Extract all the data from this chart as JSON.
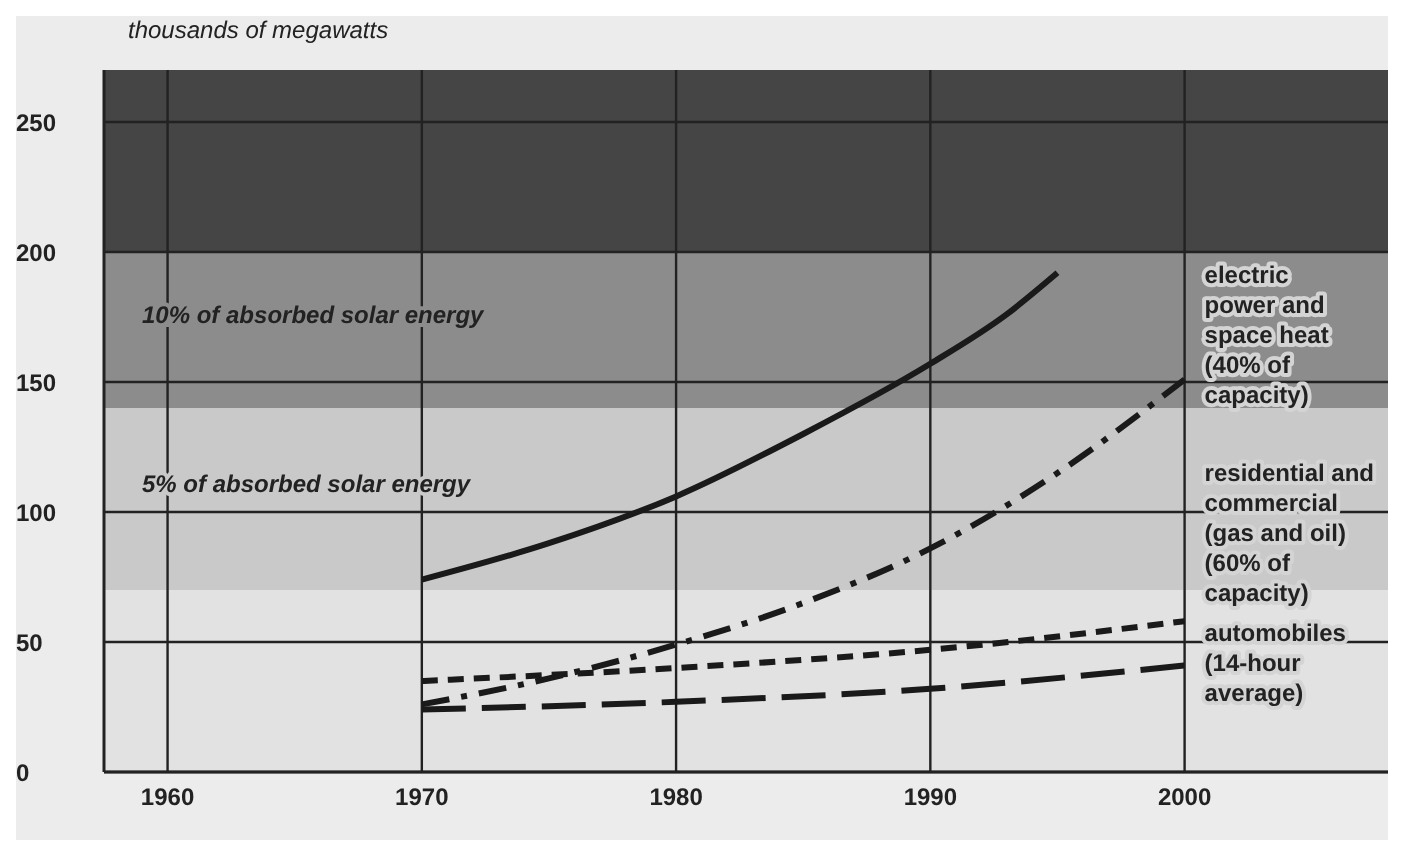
{
  "chart_data": {
    "type": "line",
    "ylabel": "thousands of megawatts",
    "xlim": [
      1957.5,
      2008
    ],
    "xticks": [
      1960,
      1970,
      1980,
      1990,
      2000
    ],
    "ylim": [
      0,
      270
    ],
    "yticks": [
      0,
      50,
      100,
      150,
      200,
      250
    ],
    "grid": true,
    "legend": false,
    "marker": "none",
    "bands": [
      {
        "axis": "y",
        "from": 0,
        "to": 70,
        "color": "#e2e2e2"
      },
      {
        "axis": "y",
        "from": 70,
        "to": 140,
        "label": "5% of absorbed solar energy",
        "color": "#c9c9c9"
      },
      {
        "axis": "y",
        "from": 140,
        "to": 200,
        "label": "10% of absorbed solar energy",
        "color": "#8c8c8c"
      },
      {
        "axis": "y",
        "from": 200,
        "to": 270,
        "color": "#454545"
      }
    ],
    "series": [
      {
        "color": "#1a1a1a",
        "line_style": "solid",
        "x": [
          1970,
          1975,
          1980,
          1985,
          1990,
          1993,
          1995
        ],
        "values": [
          74,
          88,
          106,
          130,
          157,
          176,
          192
        ]
      },
      {
        "name": "electric\npower and\nspace heat\n(40% of\ncapacity)",
        "color": "#1a1a1a",
        "line_style": "dashdot",
        "x": [
          1970,
          1975,
          1980,
          1985,
          1990,
          1995,
          2000
        ],
        "values": [
          26,
          36,
          49,
          65,
          86,
          115,
          151
        ]
      },
      {
        "name": "residential and\ncommercial\n(gas and oil)\n(60% of\ncapacity)",
        "color": "#1a1a1a",
        "line_style": "dashed",
        "x": [
          1970,
          1980,
          1990,
          2000
        ],
        "values": [
          35,
          40,
          47,
          58
        ]
      },
      {
        "name": "automobiles\n(14-hour\naverage)",
        "color": "#1a1a1a",
        "line_style": "longdash",
        "x": [
          1970,
          1980,
          1990,
          2000
        ],
        "values": [
          24,
          27,
          32,
          41
        ]
      }
    ]
  }
}
